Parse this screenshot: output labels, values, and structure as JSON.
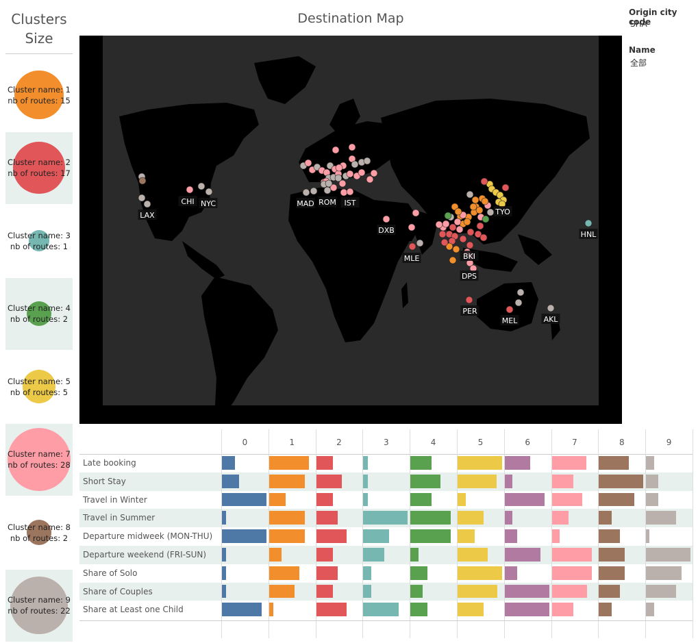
{
  "left_panel": {
    "title_line1": "Clusters",
    "title_line2": "Size",
    "clusters": [
      {
        "name_line": "Cluster name: 1",
        "routes_line": "nb of routes: 15",
        "color": "#f28e2b",
        "size": 15
      },
      {
        "name_line": "Cluster name: 2",
        "routes_line": "nb of routes: 17",
        "color": "#e15759",
        "size": 17
      },
      {
        "name_line": "Cluster name: 3",
        "routes_line": "nb of routes: 1",
        "color": "#76b7b2",
        "size": 1
      },
      {
        "name_line": "Cluster name: 4",
        "routes_line": "nb of routes: 2",
        "color": "#59a14f",
        "size": 2
      },
      {
        "name_line": "Cluster name: 5",
        "routes_line": "nb of routes: 5",
        "color": "#edc948",
        "size": 5
      },
      {
        "name_line": "Cluster name: 7",
        "routes_line": "nb of routes: 28",
        "color": "#ff9da7",
        "size": 28
      },
      {
        "name_line": "Cluster name: 8",
        "routes_line": "nb of routes: 2",
        "color": "#9c755f",
        "size": 2
      },
      {
        "name_line": "Cluster name: 9",
        "routes_line": "nb of routes: 22",
        "color": "#bab0ac",
        "size": 22
      }
    ]
  },
  "map": {
    "title": "Destination Map",
    "city_labels": [
      "LAX",
      "CHI",
      "NYC",
      "MAD",
      "ROM",
      "IST",
      "DXB",
      "MLE",
      "TYO",
      "HNL",
      "BKI",
      "DPS",
      "PER",
      "MEL",
      "AKL"
    ]
  },
  "filters": {
    "origin_label": "Origin city code",
    "origin_value": "SHA",
    "name_label": "Name",
    "name_value": "全部"
  },
  "table": {
    "columns": [
      "0",
      "1",
      "2",
      "3",
      "4",
      "5",
      "6",
      "7",
      "8",
      "9"
    ],
    "column_colors": [
      "#4e79a7",
      "#f28e2b",
      "#e15759",
      "#76b7b2",
      "#59a14f",
      "#edc948",
      "#b07aa1",
      "#ff9da7",
      "#9c755f",
      "#bab0ac"
    ],
    "rows": [
      {
        "label": "Late booking",
        "values": [
          0.3,
          0.9,
          0.38,
          0.1,
          0.48,
          1.0,
          0.58,
          0.78,
          0.68,
          0.18
        ]
      },
      {
        "label": "Short Stay",
        "values": [
          0.38,
          0.8,
          0.58,
          0.1,
          0.68,
          0.88,
          0.18,
          0.48,
          1.0,
          0.28
        ]
      },
      {
        "label": "Travel in Winter",
        "values": [
          1.0,
          0.38,
          0.38,
          0.1,
          0.48,
          0.18,
          0.9,
          0.68,
          0.8,
          0.28
        ]
      },
      {
        "label": "Travel in Summer",
        "values": [
          0.1,
          0.8,
          0.48,
          1.0,
          0.9,
          0.58,
          0.18,
          0.38,
          0.28,
          0.68
        ]
      },
      {
        "label": "Departure midweek (MON-THU)",
        "values": [
          1.0,
          0.8,
          0.68,
          0.58,
          0.9,
          0.38,
          0.28,
          0.18,
          0.48,
          0.08
        ]
      },
      {
        "label": "Departure weekend (FRI-SUN)",
        "values": [
          0.1,
          0.28,
          0.38,
          0.48,
          0.18,
          0.68,
          0.8,
          0.9,
          0.58,
          1.0
        ]
      },
      {
        "label": "Share of Solo",
        "values": [
          0.1,
          0.68,
          0.48,
          0.18,
          0.38,
          1.0,
          0.28,
          0.9,
          0.58,
          0.8
        ]
      },
      {
        "label": "Share of Couples",
        "values": [
          0.1,
          0.58,
          0.38,
          0.18,
          0.28,
          0.9,
          1.0,
          0.8,
          0.48,
          0.68
        ]
      },
      {
        "label": "Share at Least one Child",
        "values": [
          0.9,
          0.1,
          0.68,
          0.8,
          0.38,
          0.58,
          1.0,
          0.48,
          0.28,
          0.18
        ]
      }
    ]
  }
}
